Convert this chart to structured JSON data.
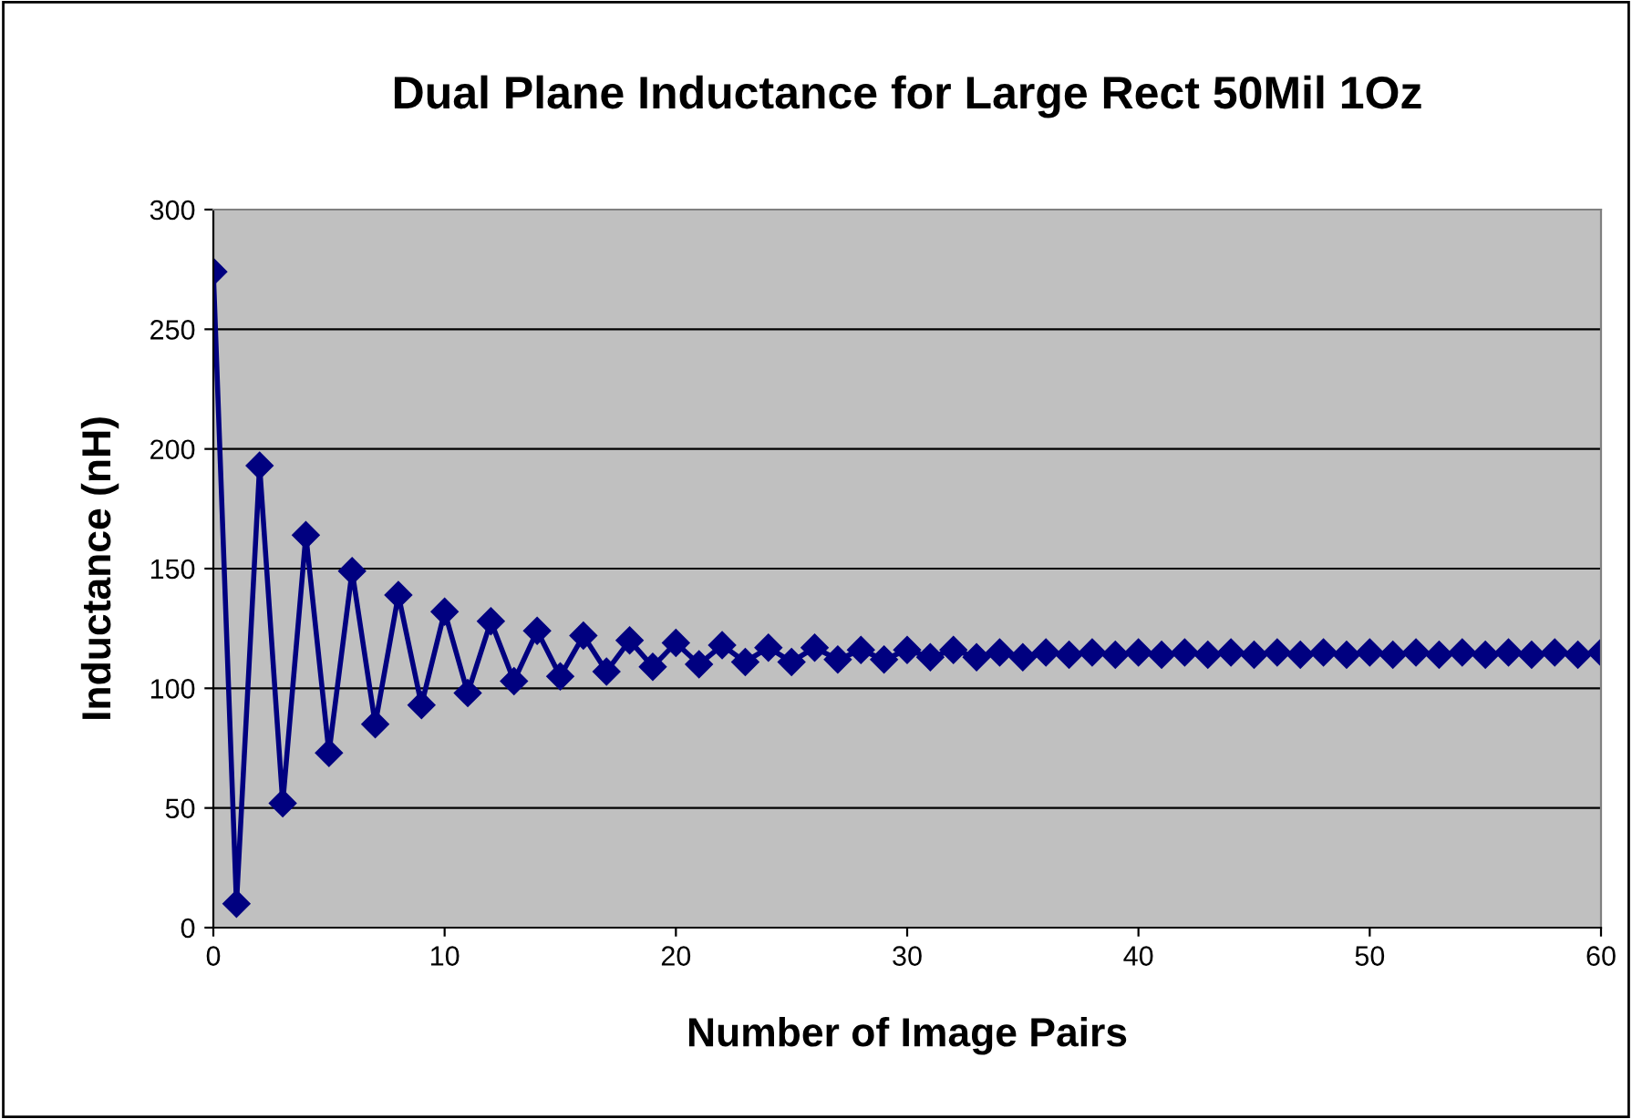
{
  "chart_data": {
    "type": "line",
    "title": "Dual Plane Inductance for Large Rect 50Mil 1Oz",
    "xlabel": "Number of Image Pairs",
    "ylabel": "Inductance (nH)",
    "x": [
      0,
      1,
      2,
      3,
      4,
      5,
      6,
      7,
      8,
      9,
      10,
      11,
      12,
      13,
      14,
      15,
      16,
      17,
      18,
      19,
      20,
      21,
      22,
      23,
      24,
      25,
      26,
      27,
      28,
      29,
      30,
      31,
      32,
      33,
      34,
      35,
      36,
      37,
      38,
      39,
      40,
      41,
      42,
      43,
      44,
      45,
      46,
      47,
      48,
      49,
      50,
      51,
      52,
      53,
      54,
      55,
      56,
      57,
      58,
      59,
      60
    ],
    "series": [
      {
        "color": "#000080",
        "values": [
          274,
          10,
          193,
          52,
          164,
          73,
          149,
          85,
          139,
          93,
          132,
          98,
          128,
          103,
          124,
          105,
          122,
          107,
          120,
          109,
          119,
          110,
          118,
          111,
          117,
          111,
          117,
          112,
          116,
          112,
          116,
          113,
          116,
          113,
          115,
          113,
          115,
          114,
          115,
          114,
          115,
          114,
          115,
          114,
          115,
          114,
          115,
          114,
          115,
          114,
          115,
          114,
          115,
          114,
          115,
          114,
          115,
          114,
          115,
          114,
          115
        ]
      }
    ],
    "xlim": [
      0,
      60
    ],
    "xticks": [
      0,
      10,
      20,
      30,
      40,
      50,
      60
    ],
    "ylim": [
      0,
      300
    ],
    "yticks": [
      0,
      50,
      100,
      150,
      200,
      250,
      300
    ],
    "grid": "y",
    "legend": false,
    "marker": "diamond",
    "line_style": "solid"
  }
}
